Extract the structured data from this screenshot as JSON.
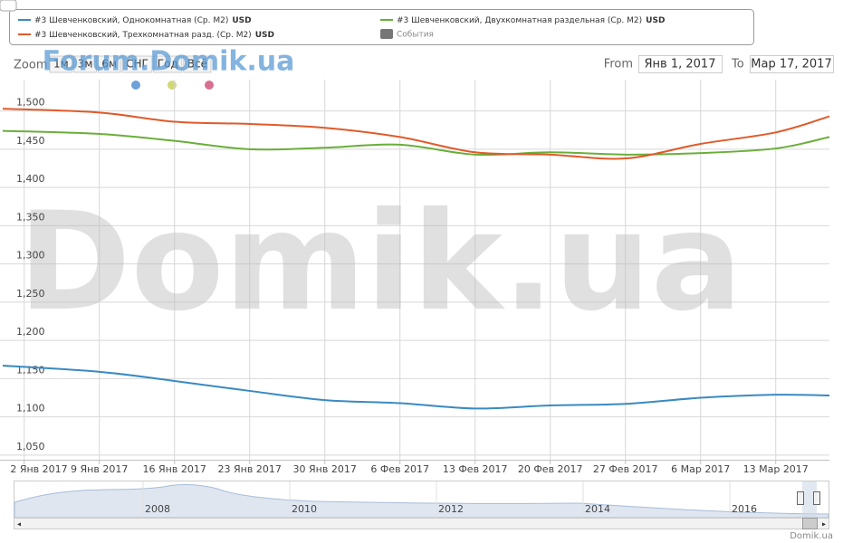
{
  "chart_data": {
    "type": "line",
    "legend": {
      "position": "top",
      "events_label": "События"
    },
    "series": [
      {
        "name": "#3 Шевченковский, Однокомнатная (Ср. М2)",
        "unit": "USD",
        "color": "#3a8ac2",
        "x": [
          "2016-12-31",
          "2017-01-09",
          "2017-01-16",
          "2017-01-23",
          "2017-01-30",
          "2017-02-06",
          "2017-02-13",
          "2017-02-20",
          "2017-02-27",
          "2017-03-06",
          "2017-03-13",
          "2017-03-18"
        ],
        "values": [
          1167,
          1159,
          1147,
          1134,
          1122,
          1118,
          1111,
          1115,
          1117,
          1125,
          1129,
          1128
        ]
      },
      {
        "name": "#3 Шевченковский, Двухкомнатная раздельная (Ср. М2)",
        "unit": "USD",
        "color": "#6aae3a",
        "x": [
          "2016-12-31",
          "2017-01-09",
          "2017-01-16",
          "2017-01-23",
          "2017-01-30",
          "2017-02-06",
          "2017-02-13",
          "2017-02-20",
          "2017-02-27",
          "2017-03-06",
          "2017-03-13",
          "2017-03-18"
        ],
        "values": [
          1474,
          1470,
          1461,
          1450,
          1452,
          1456,
          1443,
          1446,
          1443,
          1445,
          1451,
          1466
        ]
      },
      {
        "name": "#3 Шевченковский, Трехкомнатная разд. (Ср. М2)",
        "unit": "USD",
        "color": "#e05a2a",
        "x": [
          "2016-12-31",
          "2017-01-09",
          "2017-01-16",
          "2017-01-23",
          "2017-01-30",
          "2017-02-06",
          "2017-02-13",
          "2017-02-20",
          "2017-02-27",
          "2017-03-06",
          "2017-03-13",
          "2017-03-18"
        ],
        "values": [
          1503,
          1498,
          1486,
          1483,
          1478,
          1466,
          1446,
          1443,
          1438,
          1457,
          1472,
          1493
        ]
      }
    ],
    "xlim": [
      "2016-12-31",
      "2017-03-18"
    ],
    "xticks": [
      {
        "value": "2017-01-02",
        "label": "2 Янв 2017"
      },
      {
        "value": "2017-01-09",
        "label": "9 Янв 2017"
      },
      {
        "value": "2017-01-16",
        "label": "16 Янв 2017"
      },
      {
        "value": "2017-01-23",
        "label": "23 Янв 2017"
      },
      {
        "value": "2017-01-30",
        "label": "30 Янв 2017"
      },
      {
        "value": "2017-02-06",
        "label": "6 Фев 2017"
      },
      {
        "value": "2017-02-13",
        "label": "13 Фев 2017"
      },
      {
        "value": "2017-02-20",
        "label": "20 Фев 2017"
      },
      {
        "value": "2017-02-27",
        "label": "27 Фев 2017"
      },
      {
        "value": "2017-03-06",
        "label": "6 Мар 2017"
      },
      {
        "value": "2017-03-13",
        "label": "13 Мар 2017"
      }
    ],
    "ylim": [
      1044,
      1541
    ],
    "yticks": [
      {
        "value": 1050,
        "label": "1,050"
      },
      {
        "value": 1100,
        "label": "1,100"
      },
      {
        "value": 1150,
        "label": "1,150"
      },
      {
        "value": 1200,
        "label": "1,200"
      },
      {
        "value": 1250,
        "label": "1,250"
      },
      {
        "value": 1300,
        "label": "1,300"
      },
      {
        "value": 1350,
        "label": "1,350"
      },
      {
        "value": 1400,
        "label": "1,400"
      },
      {
        "value": 1450,
        "label": "1,450"
      },
      {
        "value": 1500,
        "label": "1,500"
      }
    ],
    "grid": true,
    "zoom": {
      "label": "Zoom",
      "buttons": [
        "1м",
        "3м",
        "6м",
        "СНГ",
        "Год",
        "Всё"
      ]
    },
    "range": {
      "from_label": "From",
      "from": "Янв 1, 2017",
      "to_label": "To",
      "to": "Мар 17, 2017"
    },
    "navigator": {
      "labels": [
        "2008",
        "2010",
        "2012",
        "2014",
        "2016"
      ]
    },
    "watermarks": [
      "Forum.Domik.ua",
      "Domik.ua"
    ],
    "credits": "Domik.ua"
  }
}
